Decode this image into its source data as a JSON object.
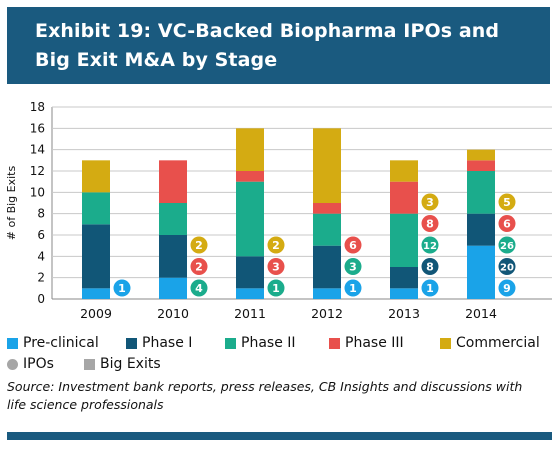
{
  "header": {
    "title_line1": "Exhibit 19: VC-Backed Biopharma IPOs and",
    "title_line2": "Big Exit M&A by Stage"
  },
  "chart_data": {
    "type": "bar",
    "subtype": "stacked-bar with circle annotations",
    "ylabel": "# of Big Exits",
    "ylim": [
      0,
      18
    ],
    "yticks": [
      0,
      2,
      4,
      6,
      8,
      10,
      12,
      14,
      16,
      18
    ],
    "grid": true,
    "categories": [
      "2009",
      "2010",
      "2011",
      "2012",
      "2013",
      "2014"
    ],
    "series": [
      {
        "name": "Pre-clinical",
        "color": "#1aa3e8",
        "values": [
          1,
          2,
          1,
          1,
          1,
          5
        ],
        "ipos": [
          1,
          null,
          null,
          1,
          1,
          9
        ]
      },
      {
        "name": "Phase I",
        "color": "#115677",
        "values": [
          6,
          4,
          3,
          4,
          2,
          3
        ],
        "ipos": [
          null,
          null,
          null,
          null,
          8,
          20
        ]
      },
      {
        "name": "Phase II",
        "color": "#1bac8c",
        "values": [
          3,
          3,
          7,
          3,
          5,
          4
        ],
        "ipos": [
          null,
          4,
          1,
          3,
          12,
          26
        ]
      },
      {
        "name": "Phase III",
        "color": "#e8504c",
        "values": [
          0,
          4,
          1,
          1,
          3,
          1
        ],
        "ipos": [
          null,
          2,
          3,
          6,
          8,
          6
        ]
      },
      {
        "name": "Commercial",
        "color": "#d4ab12",
        "values": [
          3,
          0,
          4,
          7,
          2,
          1
        ],
        "ipos": [
          null,
          2,
          2,
          null,
          3,
          5
        ]
      }
    ],
    "legend_position": "bottom"
  },
  "legend": {
    "items": [
      {
        "label": "Pre-clinical",
        "color": "#1aa3e8",
        "shape": "square"
      },
      {
        "label": "Phase I",
        "color": "#115677",
        "shape": "square"
      },
      {
        "label": "Phase II",
        "color": "#1bac8c",
        "shape": "square"
      },
      {
        "label": "Phase III",
        "color": "#e8504c",
        "shape": "square"
      },
      {
        "label": "Commercial",
        "color": "#d4ab12",
        "shape": "square"
      }
    ],
    "shape_items": [
      {
        "label": "IPOs",
        "color": "#a6a6a6",
        "shape": "circle"
      },
      {
        "label": "Big Exits",
        "color": "#a6a6a6",
        "shape": "square"
      }
    ]
  },
  "source": {
    "line1": "Source: Investment bank reports, press releases, CB Insights and discussions with",
    "line2": "life science professionals"
  },
  "colors": {
    "header_bg": "#1a5a7f",
    "footer_bar": "#1a5a7f"
  }
}
